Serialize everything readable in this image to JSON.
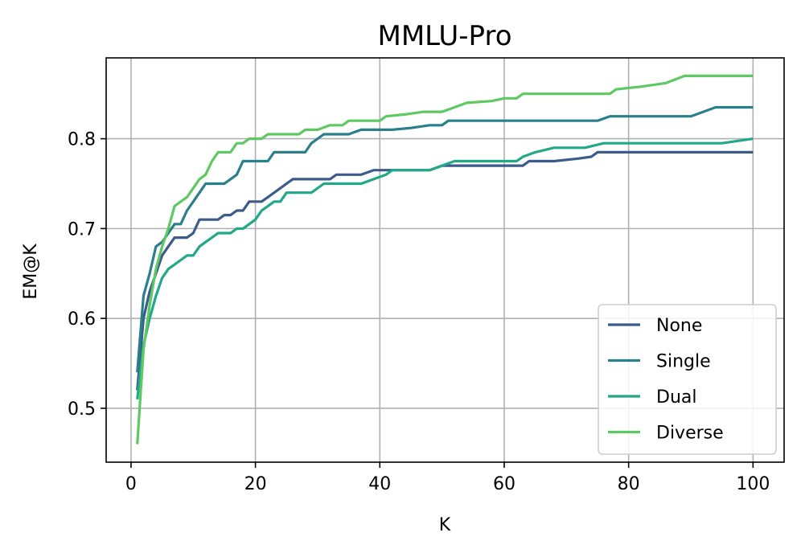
{
  "chart_data": {
    "type": "line",
    "title": "MMLU-Pro",
    "xlabel": "K",
    "ylabel": "EM@K",
    "xlim": [
      -4,
      105
    ],
    "ylim": [
      0.44,
      0.89
    ],
    "xticks": [
      0,
      20,
      40,
      60,
      80,
      100
    ],
    "yticks": [
      0.5,
      0.6,
      0.7,
      0.8
    ],
    "xtick_labels": [
      "0",
      "20",
      "40",
      "60",
      "80",
      "100"
    ],
    "ytick_labels": [
      "0.5",
      "0.6",
      "0.7",
      "0.8"
    ],
    "grid": true,
    "legend_position": "lower-right",
    "series": [
      {
        "name": "None",
        "color": "#3b5b8c",
        "points": [
          [
            1,
            0.52
          ],
          [
            2,
            0.6
          ],
          [
            3,
            0.63
          ],
          [
            4,
            0.65
          ],
          [
            5,
            0.67
          ],
          [
            6,
            0.68
          ],
          [
            7,
            0.69
          ],
          [
            8,
            0.69
          ],
          [
            9,
            0.69
          ],
          [
            10,
            0.695
          ],
          [
            11,
            0.71
          ],
          [
            12,
            0.71
          ],
          [
            13,
            0.71
          ],
          [
            14,
            0.71
          ],
          [
            15,
            0.715
          ],
          [
            16,
            0.715
          ],
          [
            17,
            0.72
          ],
          [
            18,
            0.72
          ],
          [
            19,
            0.73
          ],
          [
            20,
            0.73
          ],
          [
            21,
            0.73
          ],
          [
            22,
            0.735
          ],
          [
            24,
            0.745
          ],
          [
            26,
            0.755
          ],
          [
            28,
            0.755
          ],
          [
            30,
            0.755
          ],
          [
            32,
            0.755
          ],
          [
            33,
            0.76
          ],
          [
            35,
            0.76
          ],
          [
            37,
            0.76
          ],
          [
            39,
            0.765
          ],
          [
            41,
            0.765
          ],
          [
            45,
            0.765
          ],
          [
            48,
            0.765
          ],
          [
            50,
            0.77
          ],
          [
            55,
            0.77
          ],
          [
            60,
            0.77
          ],
          [
            63,
            0.77
          ],
          [
            64,
            0.775
          ],
          [
            68,
            0.775
          ],
          [
            72,
            0.778
          ],
          [
            74,
            0.78
          ],
          [
            75,
            0.785
          ],
          [
            80,
            0.785
          ],
          [
            85,
            0.785
          ],
          [
            90,
            0.785
          ],
          [
            95,
            0.785
          ],
          [
            100,
            0.785
          ]
        ]
      },
      {
        "name": "Single",
        "color": "#2a7f8c",
        "points": [
          [
            1,
            0.54
          ],
          [
            2,
            0.625
          ],
          [
            3,
            0.65
          ],
          [
            4,
            0.68
          ],
          [
            5,
            0.685
          ],
          [
            6,
            0.695
          ],
          [
            7,
            0.705
          ],
          [
            8,
            0.705
          ],
          [
            9,
            0.72
          ],
          [
            10,
            0.73
          ],
          [
            11,
            0.74
          ],
          [
            12,
            0.75
          ],
          [
            13,
            0.75
          ],
          [
            14,
            0.75
          ],
          [
            15,
            0.75
          ],
          [
            16,
            0.755
          ],
          [
            17,
            0.76
          ],
          [
            18,
            0.775
          ],
          [
            19,
            0.775
          ],
          [
            20,
            0.775
          ],
          [
            22,
            0.775
          ],
          [
            23,
            0.785
          ],
          [
            25,
            0.785
          ],
          [
            28,
            0.785
          ],
          [
            29,
            0.795
          ],
          [
            31,
            0.805
          ],
          [
            33,
            0.805
          ],
          [
            35,
            0.805
          ],
          [
            37,
            0.81
          ],
          [
            40,
            0.81
          ],
          [
            42,
            0.81
          ],
          [
            45,
            0.812
          ],
          [
            48,
            0.815
          ],
          [
            50,
            0.815
          ],
          [
            51,
            0.82
          ],
          [
            55,
            0.82
          ],
          [
            60,
            0.82
          ],
          [
            65,
            0.82
          ],
          [
            70,
            0.82
          ],
          [
            75,
            0.82
          ],
          [
            77,
            0.825
          ],
          [
            80,
            0.825
          ],
          [
            85,
            0.825
          ],
          [
            90,
            0.825
          ],
          [
            92,
            0.83
          ],
          [
            94,
            0.835
          ],
          [
            97,
            0.835
          ],
          [
            100,
            0.835
          ]
        ]
      },
      {
        "name": "Dual",
        "color": "#22a886",
        "points": [
          [
            1,
            0.51
          ],
          [
            2,
            0.57
          ],
          [
            3,
            0.6
          ],
          [
            4,
            0.625
          ],
          [
            5,
            0.645
          ],
          [
            6,
            0.655
          ],
          [
            7,
            0.66
          ],
          [
            8,
            0.665
          ],
          [
            9,
            0.67
          ],
          [
            10,
            0.67
          ],
          [
            11,
            0.68
          ],
          [
            12,
            0.685
          ],
          [
            13,
            0.69
          ],
          [
            14,
            0.695
          ],
          [
            15,
            0.695
          ],
          [
            16,
            0.695
          ],
          [
            17,
            0.7
          ],
          [
            18,
            0.7
          ],
          [
            19,
            0.705
          ],
          [
            20,
            0.71
          ],
          [
            21,
            0.72
          ],
          [
            22,
            0.725
          ],
          [
            23,
            0.73
          ],
          [
            24,
            0.73
          ],
          [
            25,
            0.74
          ],
          [
            27,
            0.74
          ],
          [
            29,
            0.74
          ],
          [
            31,
            0.75
          ],
          [
            33,
            0.75
          ],
          [
            35,
            0.75
          ],
          [
            37,
            0.75
          ],
          [
            39,
            0.755
          ],
          [
            41,
            0.76
          ],
          [
            42,
            0.765
          ],
          [
            45,
            0.765
          ],
          [
            48,
            0.765
          ],
          [
            50,
            0.77
          ],
          [
            52,
            0.775
          ],
          [
            55,
            0.775
          ],
          [
            60,
            0.775
          ],
          [
            62,
            0.775
          ],
          [
            63,
            0.78
          ],
          [
            65,
            0.785
          ],
          [
            68,
            0.79
          ],
          [
            70,
            0.79
          ],
          [
            73,
            0.79
          ],
          [
            76,
            0.795
          ],
          [
            80,
            0.795
          ],
          [
            85,
            0.795
          ],
          [
            90,
            0.795
          ],
          [
            95,
            0.795
          ],
          [
            100,
            0.8
          ]
        ]
      },
      {
        "name": "Diverse",
        "color": "#5ec962",
        "points": [
          [
            1,
            0.46
          ],
          [
            2,
            0.565
          ],
          [
            3,
            0.615
          ],
          [
            4,
            0.655
          ],
          [
            5,
            0.68
          ],
          [
            6,
            0.7
          ],
          [
            7,
            0.725
          ],
          [
            8,
            0.73
          ],
          [
            9,
            0.735
          ],
          [
            10,
            0.745
          ],
          [
            11,
            0.755
          ],
          [
            12,
            0.76
          ],
          [
            13,
            0.775
          ],
          [
            14,
            0.785
          ],
          [
            15,
            0.785
          ],
          [
            16,
            0.785
          ],
          [
            17,
            0.795
          ],
          [
            18,
            0.795
          ],
          [
            19,
            0.8
          ],
          [
            20,
            0.8
          ],
          [
            21,
            0.8
          ],
          [
            22,
            0.805
          ],
          [
            25,
            0.805
          ],
          [
            27,
            0.805
          ],
          [
            28,
            0.81
          ],
          [
            30,
            0.81
          ],
          [
            32,
            0.815
          ],
          [
            34,
            0.815
          ],
          [
            35,
            0.82
          ],
          [
            38,
            0.82
          ],
          [
            40,
            0.82
          ],
          [
            41,
            0.825
          ],
          [
            44,
            0.827
          ],
          [
            47,
            0.83
          ],
          [
            50,
            0.83
          ],
          [
            52,
            0.835
          ],
          [
            54,
            0.84
          ],
          [
            58,
            0.842
          ],
          [
            60,
            0.845
          ],
          [
            62,
            0.845
          ],
          [
            63,
            0.85
          ],
          [
            66,
            0.85
          ],
          [
            70,
            0.85
          ],
          [
            74,
            0.85
          ],
          [
            77,
            0.85
          ],
          [
            78,
            0.855
          ],
          [
            82,
            0.858
          ],
          [
            86,
            0.862
          ],
          [
            89,
            0.87
          ],
          [
            92,
            0.87
          ],
          [
            96,
            0.87
          ],
          [
            100,
            0.87
          ]
        ]
      }
    ]
  }
}
